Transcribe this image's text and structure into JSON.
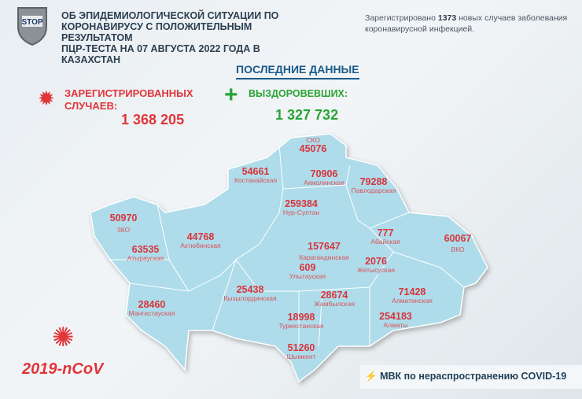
{
  "logo": {
    "text": "STOP",
    "small_text": "COVID-19"
  },
  "header": {
    "title_lines": [
      "ОБ ЭПИДЕМИОЛОГИЧЕСКОЙ СИТУАЦИИ ПО",
      "КОРОНАВИРУСУ С ПОЛОЖИТЕЛЬНЫМ РЕЗУЛЬТАТОМ",
      "ПЦР-ТЕСТА НА 07 АВГУСТА 2022 ГОДА В КАЗАХСТАН"
    ],
    "note_prefix": "Зарегистрировано ",
    "note_count": "1373",
    "note_suffix": " новых случаев заболевания коронавирусной инфекцией."
  },
  "latest_label": "ПОСЛЕДНИЕ ДАННЫЕ",
  "registered": {
    "label_line1": "ЗАРЕГИСТРИРОВАННЫХ",
    "label_line2": "СЛУЧАЕВ:",
    "value": "1 368 205",
    "color": "#e0363a"
  },
  "recovered": {
    "label": "ВЫЗДОРОВЕВШИХ:",
    "value": "1 327 732",
    "color": "#2aa335"
  },
  "regions": [
    {
      "name": "СКО",
      "value": "45076"
    },
    {
      "name": "Костанайская",
      "value": "54661"
    },
    {
      "name": "Акмолинская",
      "value": "70906"
    },
    {
      "name": "Павлодарская",
      "value": "79288"
    },
    {
      "name": "Нур-Султан",
      "value": "259384"
    },
    {
      "name": "ЗКО",
      "value": "50970"
    },
    {
      "name": "Актюбинская",
      "value": "44768"
    },
    {
      "name": "Атырауская",
      "value": "63535"
    },
    {
      "name": "Абайская",
      "value": "777"
    },
    {
      "name": "ВКО",
      "value": "60067"
    },
    {
      "name": "Карагандинская",
      "value": "157647"
    },
    {
      "name": "Жетысуская",
      "value": "2076"
    },
    {
      "name": "Улытауская",
      "value": "609"
    },
    {
      "name": "Алматинская",
      "value": "71428"
    },
    {
      "name": "Кызылординская",
      "value": "25438"
    },
    {
      "name": "Жамбылская",
      "value": "28674"
    },
    {
      "name": "Мангистауская",
      "value": "28460"
    },
    {
      "name": "Туркестанская",
      "value": "18998"
    },
    {
      "name": "Алматы",
      "value": "254183"
    },
    {
      "name": "Шымкент",
      "value": "51260"
    }
  ],
  "map_color": "#aedcea",
  "ncov_label": "2019-nCoV",
  "footer": "МВК по нераспространению COVID-19"
}
